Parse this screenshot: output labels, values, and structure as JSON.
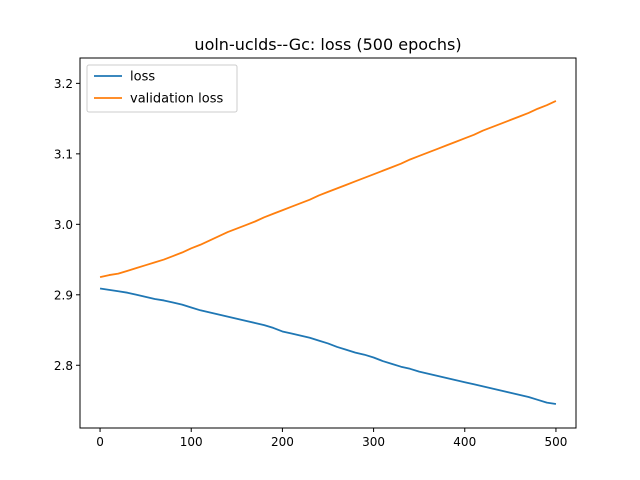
{
  "chart_data": {
    "type": "line",
    "title": "uoln-uclds--Gc: loss (500 epochs)",
    "xlabel": "",
    "ylabel": "",
    "xlim": [
      -22,
      522
    ],
    "ylim": [
      2.711,
      3.236
    ],
    "xticks": [
      0,
      100,
      200,
      300,
      400,
      500
    ],
    "yticks": [
      2.8,
      2.9,
      3.0,
      3.1,
      3.2
    ],
    "grid": false,
    "legend": {
      "placement": "top-left",
      "entries": [
        "loss",
        "validation loss"
      ]
    },
    "series": [
      {
        "name": "loss",
        "color": "#1f77b4",
        "x": [
          0,
          10,
          20,
          30,
          40,
          50,
          60,
          70,
          80,
          90,
          100,
          110,
          120,
          130,
          140,
          150,
          160,
          170,
          180,
          190,
          200,
          210,
          220,
          230,
          240,
          250,
          260,
          270,
          280,
          290,
          300,
          310,
          320,
          330,
          340,
          350,
          360,
          370,
          380,
          390,
          400,
          410,
          420,
          430,
          440,
          450,
          460,
          470,
          480,
          490,
          500
        ],
        "values": [
          2.909,
          2.907,
          2.905,
          2.903,
          2.9,
          2.897,
          2.894,
          2.892,
          2.889,
          2.886,
          2.882,
          2.878,
          2.875,
          2.872,
          2.869,
          2.866,
          2.863,
          2.86,
          2.857,
          2.853,
          2.848,
          2.845,
          2.842,
          2.839,
          2.835,
          2.831,
          2.826,
          2.822,
          2.818,
          2.815,
          2.811,
          2.806,
          2.802,
          2.798,
          2.795,
          2.791,
          2.788,
          2.785,
          2.782,
          2.779,
          2.776,
          2.773,
          2.77,
          2.767,
          2.764,
          2.761,
          2.758,
          2.755,
          2.751,
          2.747,
          2.745
        ]
      },
      {
        "name": "validation loss",
        "color": "#ff7f0e",
        "x": [
          0,
          10,
          20,
          30,
          40,
          50,
          60,
          70,
          80,
          90,
          100,
          110,
          120,
          130,
          140,
          150,
          160,
          170,
          180,
          190,
          200,
          210,
          220,
          230,
          240,
          250,
          260,
          270,
          280,
          290,
          300,
          310,
          320,
          330,
          340,
          350,
          360,
          370,
          380,
          390,
          400,
          410,
          420,
          430,
          440,
          450,
          460,
          470,
          480,
          490,
          500
        ],
        "values": [
          2.925,
          2.928,
          2.93,
          2.934,
          2.938,
          2.942,
          2.946,
          2.95,
          2.955,
          2.96,
          2.966,
          2.971,
          2.977,
          2.983,
          2.989,
          2.994,
          2.999,
          3.004,
          3.01,
          3.015,
          3.02,
          3.025,
          3.03,
          3.035,
          3.041,
          3.046,
          3.051,
          3.056,
          3.061,
          3.066,
          3.071,
          3.076,
          3.081,
          3.086,
          3.092,
          3.097,
          3.102,
          3.107,
          3.112,
          3.117,
          3.122,
          3.127,
          3.133,
          3.138,
          3.143,
          3.148,
          3.153,
          3.158,
          3.164,
          3.169,
          3.175
        ]
      }
    ]
  }
}
